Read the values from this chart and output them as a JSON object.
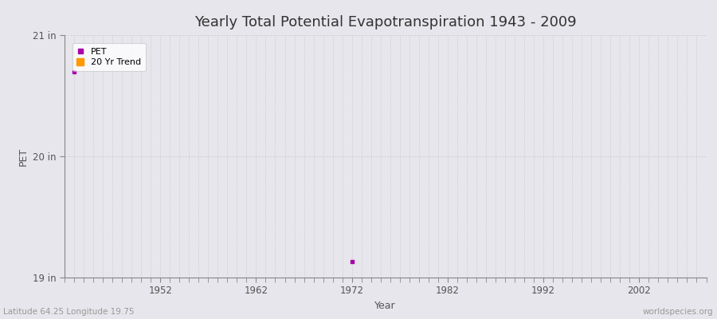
{
  "title": "Yearly Total Potential Evapotranspiration 1943 - 2009",
  "xlabel": "Year",
  "ylabel": "PET",
  "fig_bg_color": "#e6e6ec",
  "plot_bg_color": "#e6e6ec",
  "ylim": [
    19,
    21
  ],
  "xlim": [
    1942,
    2009
  ],
  "ytick_labels": [
    "19 in",
    "20 in",
    "21 in"
  ],
  "ytick_values": [
    19,
    20,
    21
  ],
  "xtick_values": [
    1952,
    1962,
    1972,
    1982,
    1992,
    2002
  ],
  "pet_data": [
    {
      "year": 1943,
      "value": 20.7
    },
    {
      "year": 1972,
      "value": 19.13
    }
  ],
  "pet_color": "#aa00aa",
  "trend_color": "#ff9900",
  "legend_labels": [
    "PET",
    "20 Yr Trend"
  ],
  "footer_left": "Latitude 64.25 Longitude 19.75",
  "footer_right": "worldspecies.org",
  "grid_color": "#cccccc",
  "title_fontsize": 13,
  "axis_label_fontsize": 9,
  "tick_fontsize": 8.5,
  "footer_fontsize": 7.5
}
